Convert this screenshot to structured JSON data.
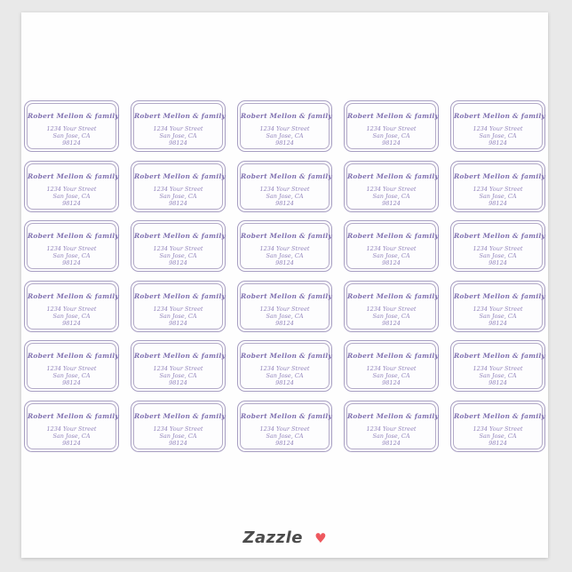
{
  "page": {
    "background_color": "#e9e9e9"
  },
  "card": {
    "background_color": "#fefefe"
  },
  "sheet": {
    "rows": 6,
    "columns": 5,
    "label_count": 30
  },
  "label": {
    "name": "Robert Mellon & family",
    "street": "1234 Your Street",
    "city": "San Jose, CA",
    "zip": "98124",
    "border_color": "#a79ec2",
    "text_color": "#8172b1"
  },
  "footer": {
    "brand": "Zazzle",
    "heart_glyph": "♥",
    "brand_color": "#4b4b4b",
    "heart_color": "#ee585e"
  }
}
